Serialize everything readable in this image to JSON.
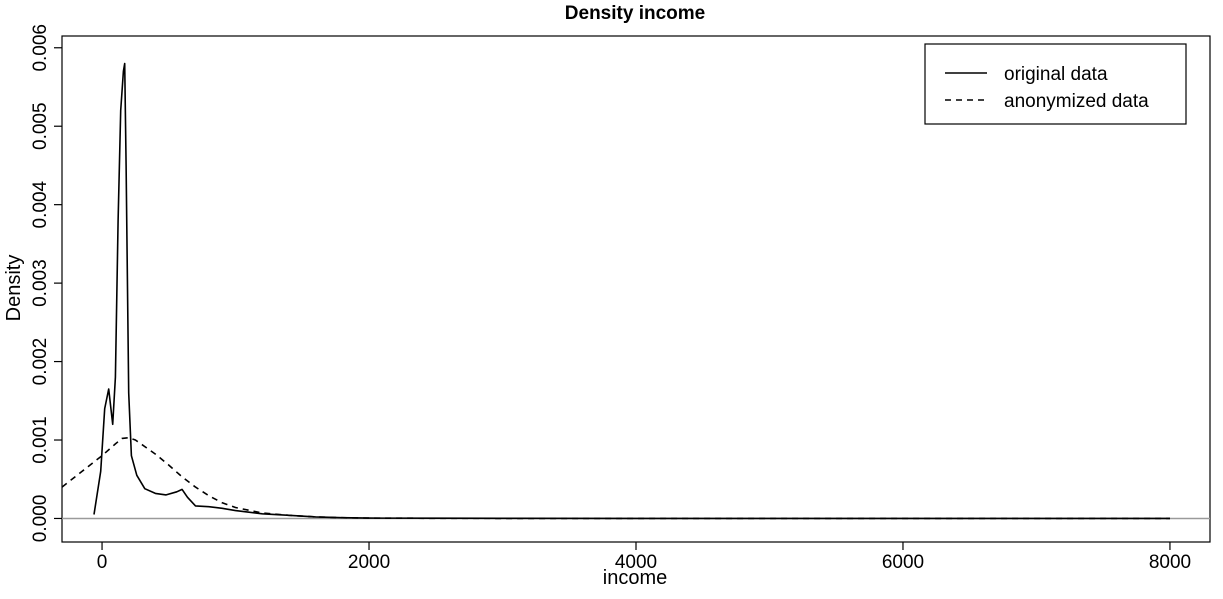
{
  "chart_data": {
    "type": "line",
    "title": "Density income",
    "xlabel": "income",
    "ylabel": "Density",
    "xlim": [
      -300,
      8300
    ],
    "ylim": [
      -0.0003,
      0.00615
    ],
    "x_ticks": [
      0,
      2000,
      4000,
      6000,
      8000
    ],
    "x_tick_labels": [
      "0",
      "2000",
      "4000",
      "6000",
      "8000"
    ],
    "y_ticks": [
      0,
      0.001,
      0.002,
      0.003,
      0.004,
      0.005,
      0.006
    ],
    "y_tick_labels": [
      "0.000",
      "0.001",
      "0.002",
      "0.003",
      "0.004",
      "0.005",
      "0.006"
    ],
    "baseline": 0,
    "grid": false,
    "legend_position": "top-right",
    "series": [
      {
        "name": "original data",
        "line_style": "solid",
        "color": "#000000",
        "x": [
          -60,
          -10,
          20,
          50,
          80,
          100,
          120,
          140,
          160,
          170,
          180,
          200,
          220,
          260,
          320,
          400,
          480,
          560,
          600,
          640,
          700,
          800,
          900,
          1000,
          1100,
          1200,
          1400,
          1600,
          1800,
          2000,
          2500,
          3000,
          4000,
          5000,
          6000,
          7000,
          8000
        ],
        "y": [
          5e-05,
          0.0006,
          0.0014,
          0.00165,
          0.0012,
          0.0018,
          0.0038,
          0.0052,
          0.0057,
          0.0058,
          0.0045,
          0.0016,
          0.0008,
          0.00055,
          0.00038,
          0.00032,
          0.0003,
          0.00034,
          0.00037,
          0.00027,
          0.00016,
          0.00015,
          0.00013,
          0.0001,
          8e-05,
          6e-05,
          4e-05,
          2e-05,
          1e-05,
          5e-06,
          3e-06,
          2e-06,
          1e-06,
          1e-06,
          1e-06,
          1e-06,
          1e-06
        ]
      },
      {
        "name": "anonymized data",
        "line_style": "dashed",
        "color": "#000000",
        "x": [
          -300,
          -150,
          0,
          100,
          150,
          200,
          250,
          300,
          400,
          500,
          600,
          700,
          800,
          900,
          1000,
          1200,
          1400,
          1600,
          1800,
          2000,
          2500,
          3000,
          4000,
          5000,
          6000,
          7000,
          8000
        ],
        "y": [
          0.0004,
          0.0006,
          0.0008,
          0.00095,
          0.00102,
          0.00103,
          0.001,
          0.00094,
          0.00082,
          0.00068,
          0.00053,
          0.0004,
          0.00029,
          0.0002,
          0.00014,
          7e-05,
          4e-05,
          2e-05,
          1e-05,
          5e-06,
          2e-06,
          1e-06,
          1e-06,
          1e-06,
          1e-06,
          1e-06,
          1e-06
        ]
      }
    ]
  }
}
